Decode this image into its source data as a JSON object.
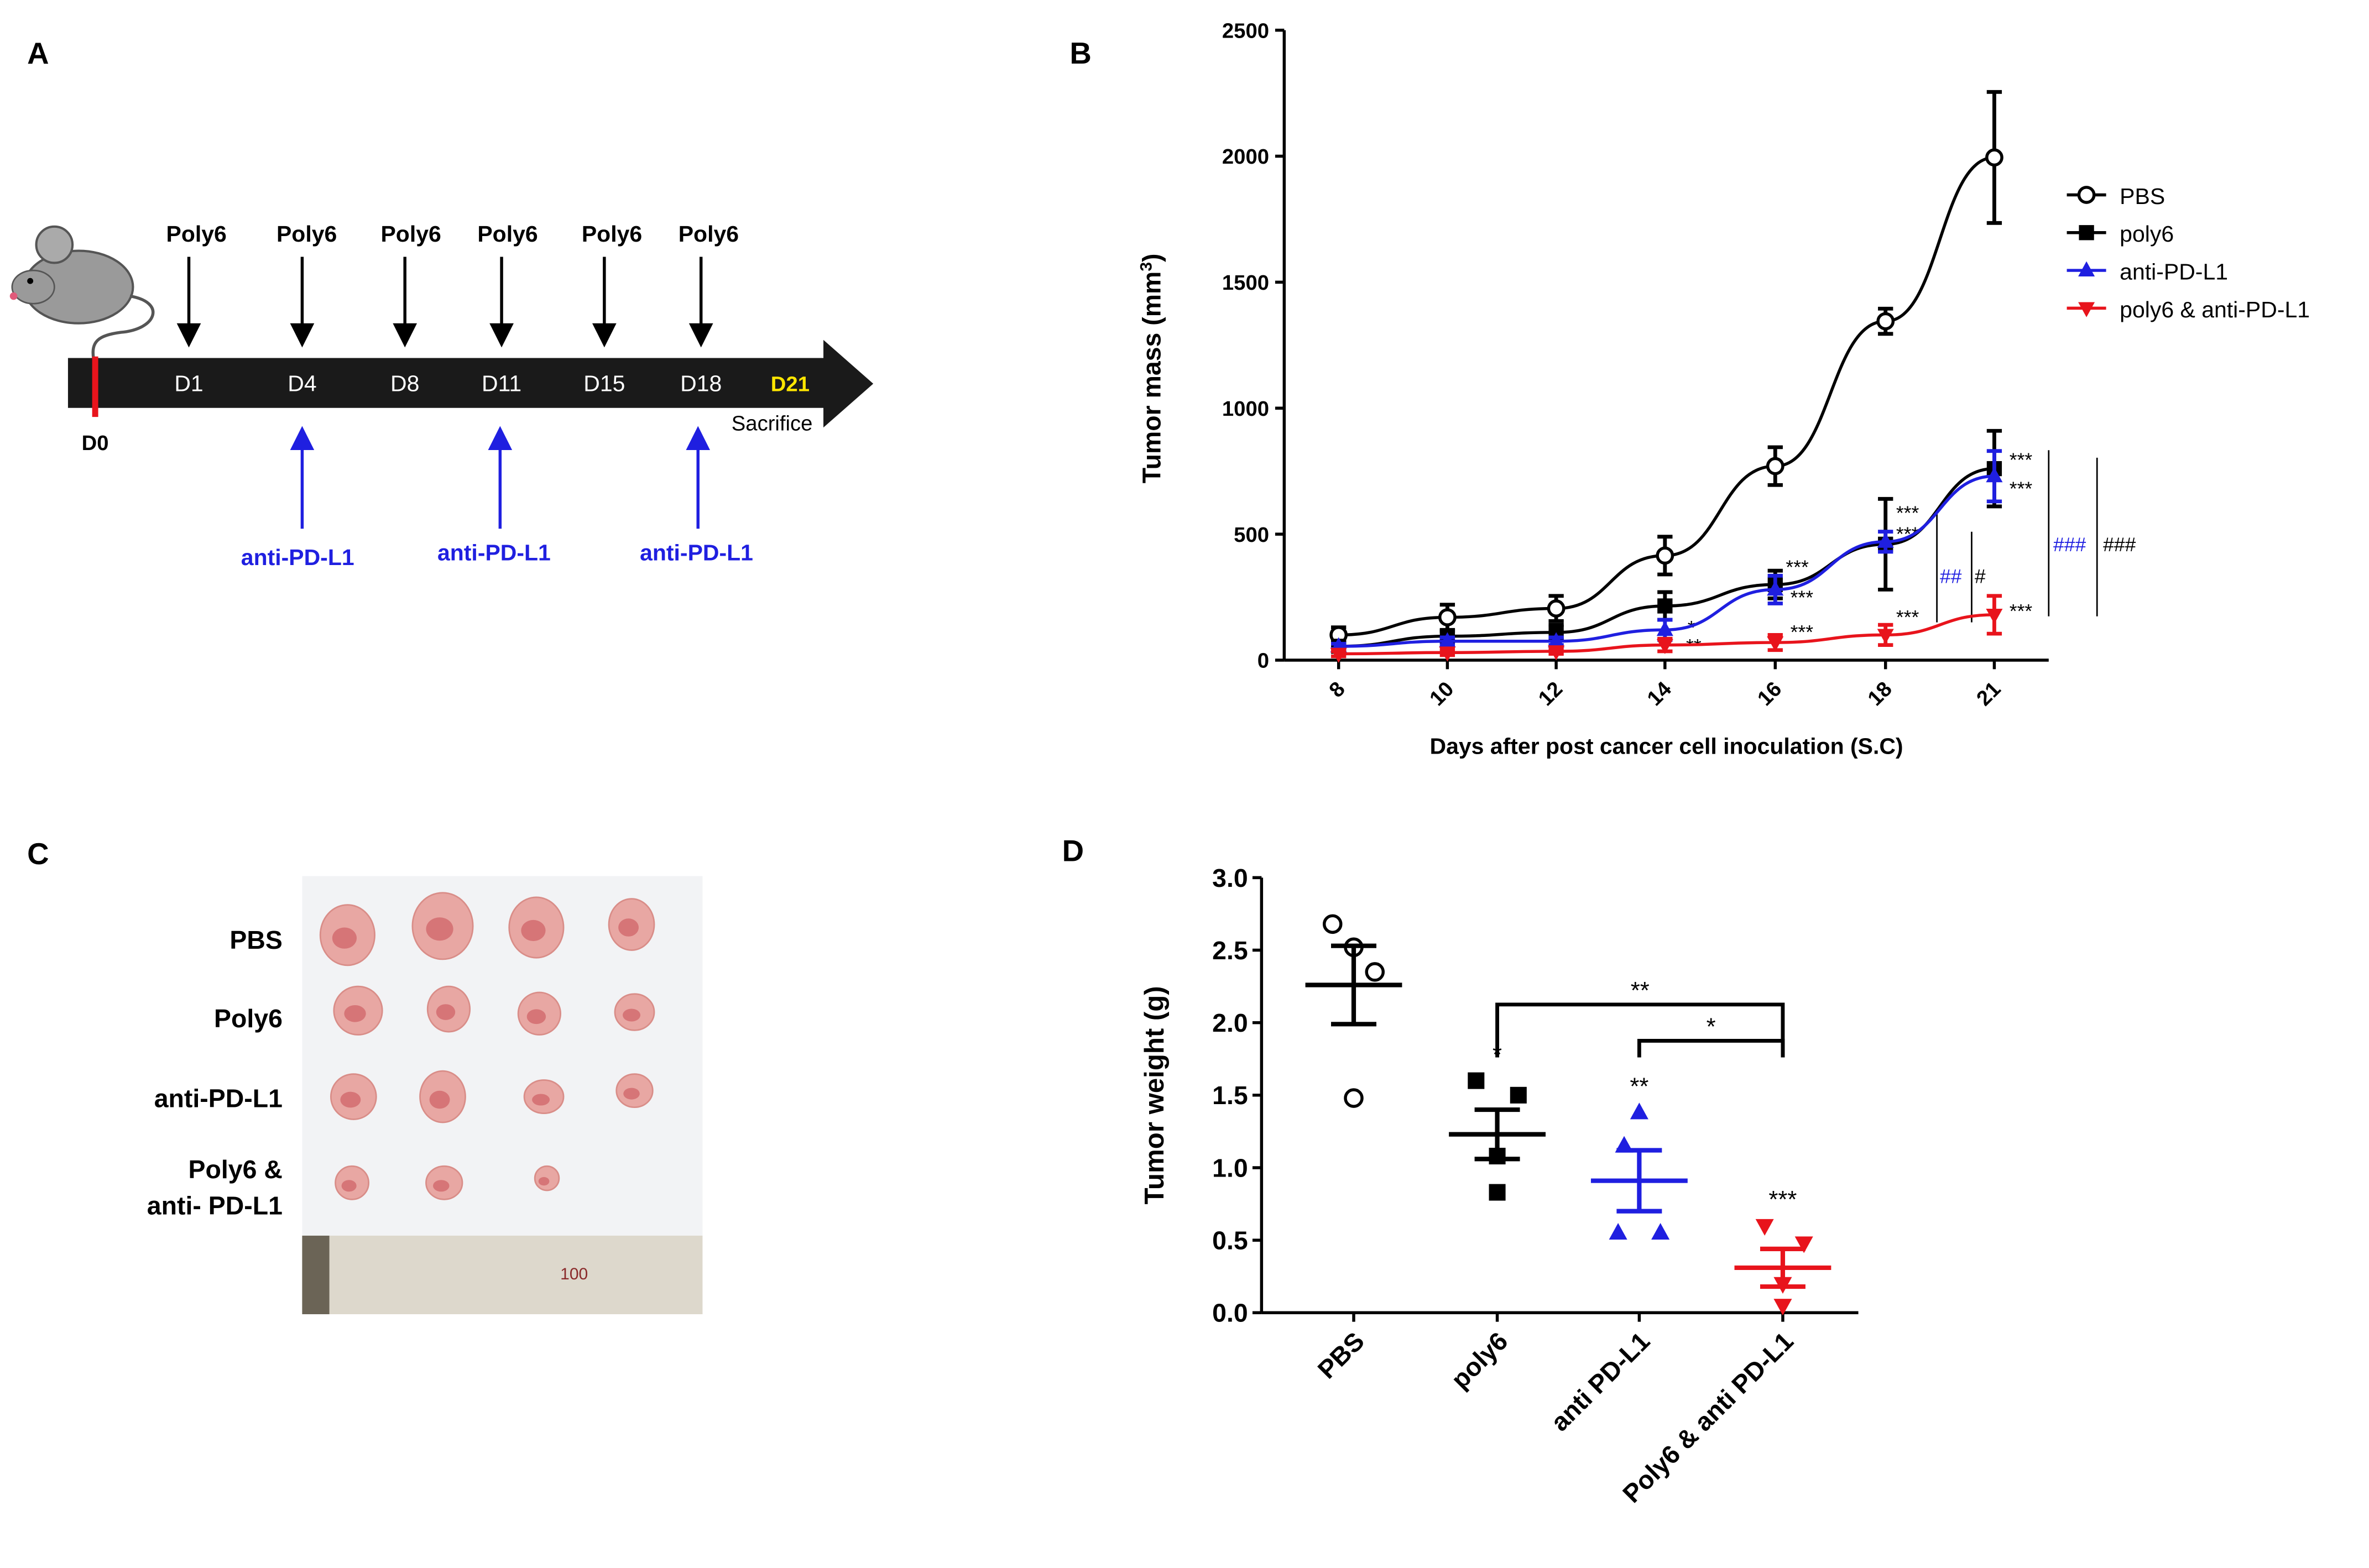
{
  "panel_labels": {
    "a": "A",
    "b": "B",
    "c": "C",
    "d": "D"
  },
  "colors": {
    "pbs": "#000000",
    "poly6": "#000000",
    "anti": "#1f1fe0",
    "combo": "#e8141c",
    "timeline": "#1a1a1a",
    "d21": "#ffe600",
    "d0": "#e8141c"
  },
  "timeline": {
    "injections_top": [
      "Poly6",
      "Poly6",
      "Poly6",
      "Poly6",
      "Poly6",
      "Poly6"
    ],
    "days": [
      "D1",
      "D4",
      "D8",
      "D11",
      "D15",
      "D18"
    ],
    "d21": "D21",
    "d0": "D0",
    "sacrifice": "Sacrifice",
    "injections_bottom": [
      "anti-PD-L1",
      "anti-PD-L1",
      "anti-PD-L1"
    ]
  },
  "photo": {
    "rows": [
      "PBS",
      "Poly6",
      "anti-PD-L1",
      "Poly6 &",
      "anti- PD-L1"
    ],
    "ruler_label": "100"
  },
  "chart_data": [
    {
      "type": "line",
      "title": "",
      "xlabel": "Days after post cancer cell inoculation (S.C)",
      "ylabel": "Tumor mass (mm",
      "ylabel_sup": "3",
      "ylabel_end": ")",
      "x": [
        "8",
        "10",
        "12",
        "14",
        "16",
        "18",
        "21"
      ],
      "ylim": [
        0,
        2500
      ],
      "yticks": [
        "0",
        "500",
        "1000",
        "1500",
        "2000",
        "2500"
      ],
      "legend_position": "right",
      "series": [
        {
          "name": "PBS",
          "marker": "open-circle",
          "values": [
            100,
            170,
            205,
            415,
            770,
            1345,
            1995
          ],
          "errors": [
            30,
            50,
            50,
            75,
            75,
            50,
            260
          ]
        },
        {
          "name": "poly6",
          "marker": "square",
          "values": [
            55,
            95,
            110,
            215,
            300,
            460,
            760
          ],
          "errors": [
            15,
            20,
            30,
            55,
            55,
            180,
            150
          ]
        },
        {
          "name": "anti-PD-L1",
          "marker": "triangle-up",
          "values": [
            55,
            75,
            75,
            120,
            280,
            470,
            730
          ],
          "errors": [
            10,
            15,
            15,
            40,
            55,
            40,
            100
          ]
        },
        {
          "name": "poly6 & anti-PD-L1",
          "marker": "triangle-down",
          "values": [
            25,
            30,
            35,
            60,
            70,
            100,
            180
          ],
          "errors": [
            10,
            10,
            10,
            25,
            30,
            40,
            75
          ]
        }
      ],
      "annotations": [
        "*",
        "**",
        "***",
        "***",
        "***",
        "***",
        "***",
        "***",
        "***",
        "***",
        "***",
        "##",
        "#",
        "###",
        "###"
      ]
    },
    {
      "type": "scatter",
      "title": "",
      "xlabel": "",
      "ylabel": "Tumor weight (g)",
      "categories": [
        "PBS",
        "poly6",
        "anti PD-L1",
        "Poly6 & anti PD-L1"
      ],
      "ylim": [
        0,
        3.0
      ],
      "yticks": [
        "0.0",
        "0.5",
        "1.0",
        "1.5",
        "2.0",
        "2.5",
        "3.0"
      ],
      "groups": [
        {
          "name": "PBS",
          "marker": "open-circle",
          "points": [
            2.68,
            2.52,
            2.35,
            1.48
          ],
          "mean": 2.26,
          "sem": 0.27
        },
        {
          "name": "poly6",
          "marker": "square",
          "points": [
            1.6,
            1.5,
            1.08,
            0.83
          ],
          "mean": 1.23,
          "sem": 0.17
        },
        {
          "name": "anti PD-L1",
          "marker": "triangle-up",
          "points": [
            1.38,
            1.15,
            0.55,
            0.55
          ],
          "mean": 0.91,
          "sem": 0.21
        },
        {
          "name": "Poly6 & anti PD-L1",
          "marker": "triangle-down",
          "points": [
            0.6,
            0.48,
            0.2,
            0.05
          ],
          "mean": 0.31,
          "sem": 0.13
        }
      ],
      "group_stars": [
        "",
        "*",
        "**",
        "***"
      ],
      "brackets": [
        {
          "from": "poly6",
          "to": "Poly6 & anti PD-L1",
          "label": "**"
        },
        {
          "from": "anti PD-L1",
          "to": "Poly6 & anti PD-L1",
          "label": "*"
        }
      ]
    }
  ]
}
